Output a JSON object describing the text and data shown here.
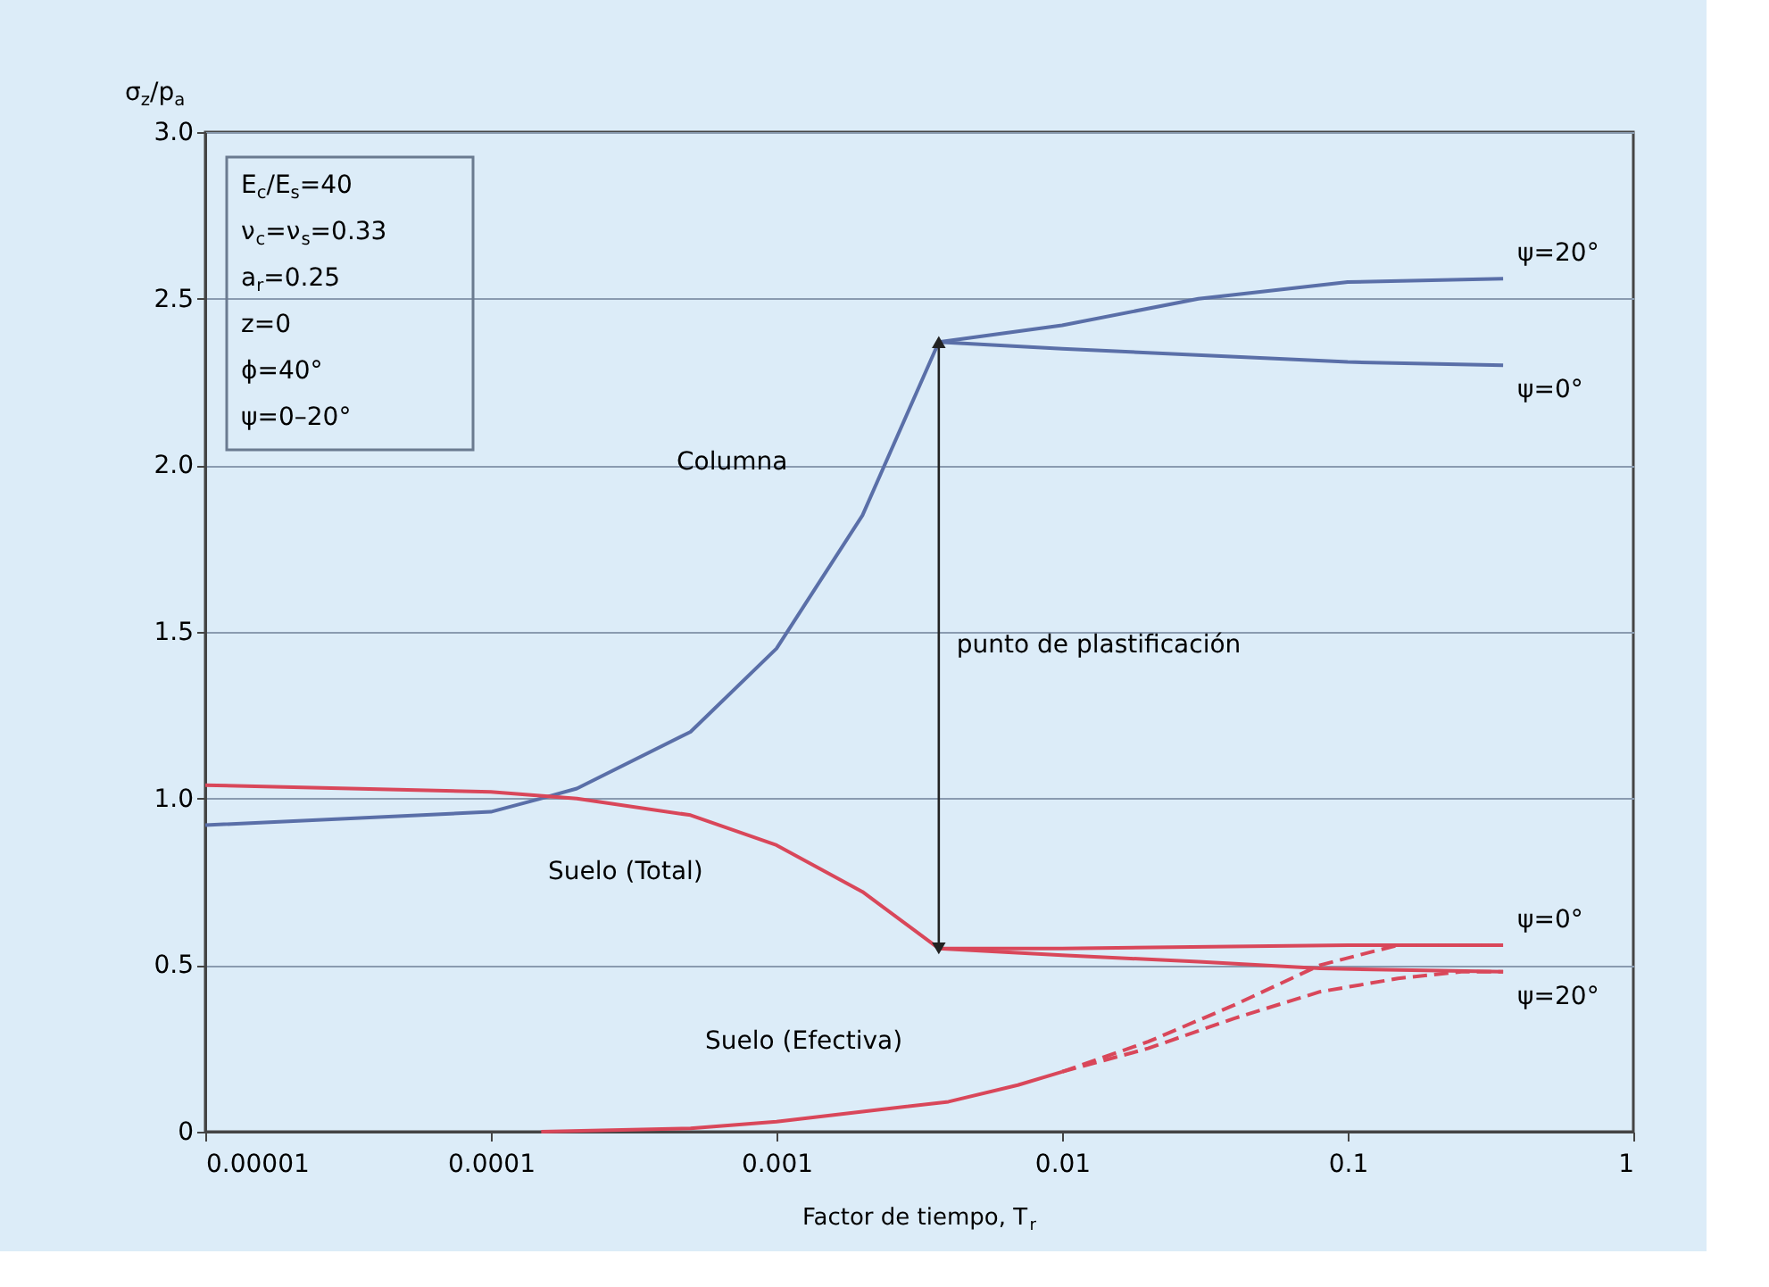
{
  "chart_data": {
    "type": "line",
    "xlabel": "Factor de tiempo, T$_{r}$",
    "ylabel": "σ$_{z}$/p$_{a}$",
    "log": "x",
    "xlim": [
      1e-05,
      1
    ],
    "ylim": [
      0,
      3
    ],
    "xticks": [
      {
        "value": 1e-05,
        "label": "0.00001"
      },
      {
        "value": 0.0001,
        "label": "0.0001"
      },
      {
        "value": 0.001,
        "label": "0.001"
      },
      {
        "value": 0.01,
        "label": "0.01"
      },
      {
        "value": 0.1,
        "label": "0.1"
      },
      1
    ],
    "yticks": [
      0,
      0.5,
      {
        "value": 1,
        "label": "1.0"
      },
      1.5,
      {
        "value": 2,
        "label": "2.0"
      },
      2.5,
      {
        "value": 3,
        "label": "3.0"
      }
    ],
    "grid": "y",
    "legend": false,
    "marker": "none",
    "series": [
      {
        "name": "ψ=20°",
        "color": "#5a6fa8",
        "line_style": "solid",
        "x": [
          1e-05,
          0.0001,
          0.00015,
          0.0002,
          0.0005,
          0.001,
          0.002,
          0.0037,
          0.01,
          0.03,
          0.1,
          0.35
        ],
        "values": [
          0.92,
          0.96,
          1.0,
          1.03,
          1.2,
          1.45,
          1.85,
          2.37,
          2.42,
          2.5,
          2.55,
          2.56
        ]
      },
      {
        "name": "ψ=0°",
        "color": "#5a6fa8",
        "line_style": "solid",
        "x": [
          0.0037,
          0.01,
          0.1,
          0.35
        ],
        "values": [
          2.37,
          2.35,
          2.31,
          2.3
        ]
      },
      {
        "name": "ψ=0°",
        "color": "#d9475a",
        "line_style": "solid",
        "x": [
          1e-05,
          0.0001,
          0.0002,
          0.0005,
          0.001,
          0.002,
          0.0037,
          0.01,
          0.1,
          0.35
        ],
        "values": [
          1.04,
          1.02,
          1.0,
          0.95,
          0.86,
          0.72,
          0.55,
          0.55,
          0.56,
          0.56
        ]
      },
      {
        "name": "ψ=20°",
        "color": "#d9475a",
        "line_style": "solid",
        "x": [
          0.0037,
          0.01,
          0.03,
          0.08,
          0.35
        ],
        "values": [
          0.55,
          0.53,
          0.51,
          0.49,
          0.48
        ]
      },
      {
        "color": "#d9475a",
        "line_style": "solid",
        "x": [
          0.00015,
          0.0005,
          0.001,
          0.002,
          0.004,
          0.007,
          0.01
        ],
        "values": [
          0.0,
          0.01,
          0.03,
          0.06,
          0.09,
          0.14,
          0.18
        ]
      },
      {
        "color": "#d9475a",
        "line_style": "dashed",
        "x": [
          0.01,
          0.02,
          0.04,
          0.08,
          0.15,
          0.35
        ],
        "values": [
          0.18,
          0.27,
          0.38,
          0.5,
          0.56,
          0.56
        ]
      },
      {
        "color": "#d9475a",
        "line_style": "dashed",
        "x": [
          0.01,
          0.02,
          0.04,
          0.08,
          0.15,
          0.25,
          0.35
        ],
        "values": [
          0.18,
          0.25,
          0.34,
          0.42,
          0.46,
          0.48,
          0.48
        ]
      }
    ],
    "annotations": [
      "E$_{c}$/E$_{s}$=40",
      "ν$_{c}$=ν$_{s}$=0.33",
      "a$_{r}$=0.25",
      "z=0",
      "ϕ=40°",
      "ψ=0–20°",
      "Columna",
      "Suelo (Total)",
      "Suelo (Efectiva)"
    ],
    "ref_lines": [
      {
        "axis": "x",
        "value": 0.0037,
        "label": "punto de plastificación",
        "color": "#222222"
      }
    ]
  }
}
